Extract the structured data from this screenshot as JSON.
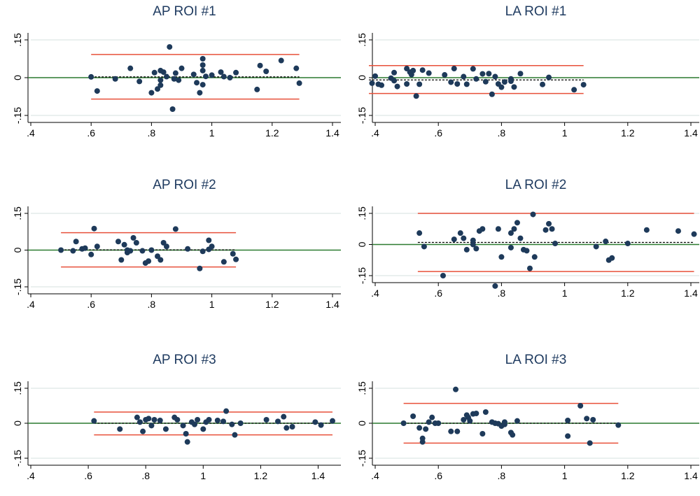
{
  "colors": {
    "points": "#1e3a5a",
    "limits": "#e8503a",
    "zero_line": "#2f7d32",
    "mean_line": "#000000",
    "grid": "#e4ecea",
    "title": "#1f3b60"
  },
  "chart_data": [
    {
      "type": "scatter",
      "title": "AP ROI #1",
      "xlabel": "",
      "ylabel": "",
      "xlim": [
        0.4,
        1.4
      ],
      "ylim": [
        -0.15,
        0.15
      ],
      "xticks": [
        ".4",
        ".6",
        ".8",
        "1",
        "1.2",
        "1.4"
      ],
      "yticks": [
        "-.15",
        "0",
        ".15"
      ],
      "grid": true,
      "zero_line": 0,
      "mean": 0.003,
      "limits": {
        "upper": 0.092,
        "lower": -0.085,
        "x_range": [
          0.6,
          1.29
        ]
      },
      "points": [
        [
          0.6,
          0.003
        ],
        [
          0.62,
          -0.053
        ],
        [
          0.68,
          -0.005
        ],
        [
          0.73,
          0.037
        ],
        [
          0.76,
          -0.015
        ],
        [
          0.8,
          -0.06
        ],
        [
          0.81,
          0.02
        ],
        [
          0.82,
          -0.045
        ],
        [
          0.83,
          -0.03
        ],
        [
          0.83,
          -0.01
        ],
        [
          0.83,
          0.028
        ],
        [
          0.84,
          0.022
        ],
        [
          0.85,
          0.004
        ],
        [
          0.86,
          0.122
        ],
        [
          0.87,
          -0.125
        ],
        [
          0.875,
          -0.005
        ],
        [
          0.88,
          0.018
        ],
        [
          0.89,
          -0.01
        ],
        [
          0.9,
          0.037
        ],
        [
          0.94,
          0.013
        ],
        [
          0.95,
          -0.02
        ],
        [
          0.96,
          -0.06
        ],
        [
          0.97,
          0.075
        ],
        [
          0.97,
          0.05
        ],
        [
          0.97,
          0.028
        ],
        [
          0.97,
          -0.028
        ],
        [
          0.98,
          0.005
        ],
        [
          1.0,
          0.01
        ],
        [
          1.03,
          0.022
        ],
        [
          1.04,
          0.004
        ],
        [
          1.06,
          0.0
        ],
        [
          1.08,
          0.02
        ],
        [
          1.15,
          -0.047
        ],
        [
          1.16,
          0.048
        ],
        [
          1.18,
          0.025
        ],
        [
          1.23,
          0.068
        ],
        [
          1.28,
          0.037
        ],
        [
          1.29,
          -0.022
        ]
      ]
    },
    {
      "type": "scatter",
      "title": "LA ROI #1",
      "xlabel": "",
      "ylabel": "",
      "xlim": [
        0.4,
        1.4
      ],
      "ylim": [
        -0.15,
        0.15
      ],
      "xticks": [
        ".4",
        ".6",
        ".8",
        "1",
        "1.2",
        "1.4"
      ],
      "yticks": [
        "-.15",
        "0",
        ".15"
      ],
      "grid": true,
      "zero_line": 0,
      "mean": -0.009,
      "limits": {
        "upper": 0.048,
        "lower": -0.063,
        "x_range": [
          0.38,
          1.06
        ]
      },
      "points": [
        [
          0.39,
          -0.022
        ],
        [
          0.4,
          0.006
        ],
        [
          0.41,
          -0.026
        ],
        [
          0.42,
          -0.03
        ],
        [
          0.45,
          -0.002
        ],
        [
          0.46,
          0.02
        ],
        [
          0.46,
          -0.012
        ],
        [
          0.47,
          -0.035
        ],
        [
          0.5,
          0.036
        ],
        [
          0.5,
          -0.025
        ],
        [
          0.51,
          0.022
        ],
        [
          0.515,
          0.012
        ],
        [
          0.52,
          0.028
        ],
        [
          0.53,
          -0.073
        ],
        [
          0.54,
          -0.026
        ],
        [
          0.55,
          0.03
        ],
        [
          0.57,
          0.018
        ],
        [
          0.62,
          0.011
        ],
        [
          0.64,
          -0.018
        ],
        [
          0.65,
          0.036
        ],
        [
          0.66,
          -0.025
        ],
        [
          0.68,
          0.004
        ],
        [
          0.69,
          -0.026
        ],
        [
          0.71,
          0.035
        ],
        [
          0.72,
          -0.005
        ],
        [
          0.74,
          0.015
        ],
        [
          0.75,
          -0.016
        ],
        [
          0.76,
          0.016
        ],
        [
          0.77,
          -0.066
        ],
        [
          0.78,
          0.004
        ],
        [
          0.79,
          -0.025
        ],
        [
          0.8,
          -0.038
        ],
        [
          0.81,
          -0.017
        ],
        [
          0.83,
          -0.014
        ],
        [
          0.83,
          -0.005
        ],
        [
          0.84,
          -0.037
        ],
        [
          0.86,
          0.016
        ],
        [
          0.93,
          -0.027
        ],
        [
          0.95,
          0.001
        ],
        [
          1.03,
          -0.048
        ],
        [
          1.06,
          -0.028
        ]
      ]
    },
    {
      "type": "scatter",
      "title": "AP ROI #2",
      "xlabel": "",
      "ylabel": "",
      "xlim": [
        0.4,
        1.4
      ],
      "ylim": [
        -0.15,
        0.15
      ],
      "xticks": [
        ".4",
        ".6",
        ".8",
        "1",
        "1.2",
        "1.4"
      ],
      "yticks": [
        "-.15",
        "0",
        ".15"
      ],
      "grid": true,
      "zero_line": 0,
      "mean": 0.001,
      "limits": {
        "upper": 0.071,
        "lower": -0.069,
        "x_range": [
          0.5,
          1.08
        ]
      },
      "points": [
        [
          0.5,
          0.0
        ],
        [
          0.54,
          -0.003
        ],
        [
          0.55,
          0.035
        ],
        [
          0.57,
          0.005
        ],
        [
          0.58,
          0.008
        ],
        [
          0.6,
          -0.018
        ],
        [
          0.61,
          0.088
        ],
        [
          0.62,
          0.015
        ],
        [
          0.69,
          0.035
        ],
        [
          0.7,
          -0.04
        ],
        [
          0.71,
          0.022
        ],
        [
          0.72,
          -0.01
        ],
        [
          0.72,
          0.0
        ],
        [
          0.73,
          -0.003
        ],
        [
          0.74,
          0.05
        ],
        [
          0.75,
          0.03
        ],
        [
          0.77,
          -0.003
        ],
        [
          0.78,
          -0.053
        ],
        [
          0.79,
          -0.045
        ],
        [
          0.8,
          0.0
        ],
        [
          0.82,
          -0.025
        ],
        [
          0.83,
          -0.04
        ],
        [
          0.84,
          0.03
        ],
        [
          0.85,
          0.015
        ],
        [
          0.88,
          0.086
        ],
        [
          0.92,
          0.005
        ],
        [
          0.96,
          -0.075
        ],
        [
          0.97,
          -0.005
        ],
        [
          0.99,
          0.04
        ],
        [
          0.99,
          0.003
        ],
        [
          1.0,
          0.015
        ],
        [
          1.04,
          -0.048
        ],
        [
          1.07,
          -0.015
        ],
        [
          1.08,
          -0.038
        ]
      ]
    },
    {
      "type": "scatter",
      "title": "LA ROI #2",
      "xlabel": "",
      "ylabel": "",
      "xlim": [
        0.4,
        1.4
      ],
      "ylim": [
        -0.15,
        0.15
      ],
      "xticks": [
        ".4",
        ".6",
        ".8",
        "1",
        "1.2",
        "1.4"
      ],
      "yticks": [
        "-.15",
        "0",
        ".15"
      ],
      "grid": true,
      "zero_line": 0,
      "mean": 0.01,
      "limits": {
        "upper": 0.15,
        "lower": -0.13,
        "x_range": [
          0.535,
          1.41
        ]
      },
      "points": [
        [
          0.54,
          0.055
        ],
        [
          0.555,
          -0.01
        ],
        [
          0.615,
          -0.15
        ],
        [
          0.65,
          0.025
        ],
        [
          0.67,
          0.055
        ],
        [
          0.68,
          0.03
        ],
        [
          0.69,
          -0.025
        ],
        [
          0.71,
          0.02
        ],
        [
          0.71,
          0.0
        ],
        [
          0.72,
          -0.02
        ],
        [
          0.73,
          0.065
        ],
        [
          0.74,
          0.075
        ],
        [
          0.78,
          -0.2
        ],
        [
          0.79,
          0.075
        ],
        [
          0.8,
          -0.06
        ],
        [
          0.83,
          -0.015
        ],
        [
          0.83,
          0.055
        ],
        [
          0.84,
          0.075
        ],
        [
          0.85,
          0.105
        ],
        [
          0.86,
          0.03
        ],
        [
          0.87,
          -0.025
        ],
        [
          0.88,
          -0.03
        ],
        [
          0.89,
          -0.115
        ],
        [
          0.9,
          0.145
        ],
        [
          0.905,
          -0.06
        ],
        [
          0.94,
          0.07
        ],
        [
          0.95,
          0.1
        ],
        [
          0.96,
          0.075
        ],
        [
          0.97,
          0.005
        ],
        [
          1.1,
          -0.01
        ],
        [
          1.13,
          0.015
        ],
        [
          1.14,
          -0.075
        ],
        [
          1.15,
          -0.065
        ],
        [
          1.2,
          0.005
        ],
        [
          1.26,
          0.07
        ],
        [
          1.36,
          0.065
        ],
        [
          1.41,
          0.05
        ]
      ]
    },
    {
      "type": "scatter",
      "title": "AP ROI #3",
      "xlabel": "",
      "ylabel": "",
      "xlim": [
        0.4,
        1.45
      ],
      "ylim": [
        -0.15,
        0.15
      ],
      "xticks": [
        ".4",
        ".6",
        ".8",
        "1",
        "1.2",
        "1.4"
      ],
      "yticks": [
        "-.15",
        "0",
        ".15"
      ],
      "grid": true,
      "zero_line": 0,
      "mean": 0.0,
      "limits": {
        "upper": 0.048,
        "lower": -0.05,
        "x_range": [
          0.62,
          1.45
        ]
      },
      "points": [
        [
          0.62,
          0.01
        ],
        [
          0.71,
          -0.025
        ],
        [
          0.77,
          0.025
        ],
        [
          0.78,
          0.005
        ],
        [
          0.79,
          -0.035
        ],
        [
          0.8,
          0.015
        ],
        [
          0.81,
          0.02
        ],
        [
          0.82,
          -0.01
        ],
        [
          0.83,
          0.015
        ],
        [
          0.85,
          0.012
        ],
        [
          0.87,
          -0.025
        ],
        [
          0.9,
          0.025
        ],
        [
          0.91,
          0.015
        ],
        [
          0.93,
          -0.01
        ],
        [
          0.94,
          -0.045
        ],
        [
          0.945,
          -0.08
        ],
        [
          0.96,
          0.005
        ],
        [
          0.97,
          -0.005
        ],
        [
          0.98,
          0.015
        ],
        [
          1.0,
          -0.025
        ],
        [
          1.01,
          0.005
        ],
        [
          1.02,
          0.015
        ],
        [
          1.05,
          0.012
        ],
        [
          1.07,
          0.008
        ],
        [
          1.08,
          0.052
        ],
        [
          1.1,
          -0.005
        ],
        [
          1.11,
          -0.05
        ],
        [
          1.13,
          0.0
        ],
        [
          1.22,
          0.015
        ],
        [
          1.26,
          0.008
        ],
        [
          1.28,
          0.028
        ],
        [
          1.29,
          -0.02
        ],
        [
          1.31,
          -0.015
        ],
        [
          1.39,
          0.005
        ],
        [
          1.41,
          -0.008
        ],
        [
          1.45,
          0.01
        ]
      ]
    },
    {
      "type": "scatter",
      "title": "LA ROI #3",
      "xlabel": "",
      "ylabel": "",
      "xlim": [
        0.4,
        1.4
      ],
      "ylim": [
        -0.15,
        0.15
      ],
      "xticks": [
        ".4",
        ".6",
        ".8",
        "1",
        "1.2",
        "1.4"
      ],
      "yticks": [
        "-.15",
        "0",
        ".15"
      ],
      "grid": true,
      "zero_line": 0,
      "mean": 0.0,
      "limits": {
        "upper": 0.085,
        "lower": -0.085,
        "x_range": [
          0.49,
          1.17
        ]
      },
      "points": [
        [
          0.49,
          0.0
        ],
        [
          0.52,
          0.03
        ],
        [
          0.54,
          -0.02
        ],
        [
          0.55,
          -0.065
        ],
        [
          0.55,
          -0.08
        ],
        [
          0.56,
          -0.025
        ],
        [
          0.57,
          0.005
        ],
        [
          0.58,
          0.025
        ],
        [
          0.59,
          0.0
        ],
        [
          0.6,
          0.0
        ],
        [
          0.64,
          -0.035
        ],
        [
          0.655,
          0.145
        ],
        [
          0.66,
          -0.035
        ],
        [
          0.68,
          0.015
        ],
        [
          0.69,
          0.035
        ],
        [
          0.695,
          0.025
        ],
        [
          0.7,
          0.01
        ],
        [
          0.71,
          0.04
        ],
        [
          0.72,
          0.042
        ],
        [
          0.74,
          -0.045
        ],
        [
          0.75,
          0.048
        ],
        [
          0.77,
          0.005
        ],
        [
          0.78,
          0.0
        ],
        [
          0.79,
          -0.002
        ],
        [
          0.8,
          -0.012
        ],
        [
          0.81,
          0.005
        ],
        [
          0.81,
          -0.005
        ],
        [
          0.83,
          -0.04
        ],
        [
          0.835,
          -0.05
        ],
        [
          0.85,
          0.01
        ],
        [
          1.01,
          -0.055
        ],
        [
          1.01,
          0.012
        ],
        [
          1.05,
          0.075
        ],
        [
          1.07,
          0.02
        ],
        [
          1.08,
          -0.085
        ],
        [
          1.09,
          0.015
        ],
        [
          1.17,
          -0.008
        ]
      ]
    }
  ]
}
